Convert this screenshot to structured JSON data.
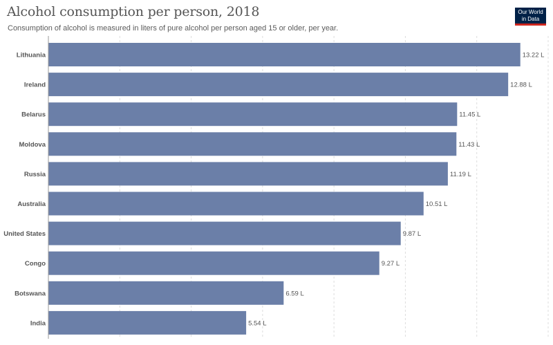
{
  "header": {
    "title": "Alcohol consumption per person, 2018",
    "subtitle": "Consumption of alcohol is measured in liters of pure alcohol per person aged 15 or older, per year.",
    "logo_text": "Our World\nin Data"
  },
  "colors": {
    "bar": "#6b7fa8",
    "grid": "#dddddd",
    "logo_bg": "#002147",
    "logo_accent": "#ce261e"
  },
  "chart_data": {
    "type": "bar",
    "orientation": "horizontal",
    "title": "Alcohol consumption per person, 2018",
    "subtitle": "Consumption of alcohol is measured in liters of pure alcohol per person aged 15 or older, per year.",
    "categories": [
      "Lithuania",
      "Ireland",
      "Belarus",
      "Moldova",
      "Russia",
      "Australia",
      "United States",
      "Congo",
      "Botswana",
      "India"
    ],
    "values": [
      13.22,
      12.88,
      11.45,
      11.43,
      11.19,
      10.51,
      9.87,
      9.27,
      6.59,
      5.54
    ],
    "value_labels": [
      "13.22 L",
      "12.88 L",
      "11.45 L",
      "11.43 L",
      "11.19 L",
      "10.51 L",
      "9.87 L",
      "9.27 L",
      "6.59 L",
      "5.54 L"
    ],
    "unit": "L",
    "xlim": [
      0,
      14
    ],
    "gridlines": [
      0,
      2,
      4,
      6,
      8,
      10,
      12,
      14
    ],
    "grid": true
  }
}
